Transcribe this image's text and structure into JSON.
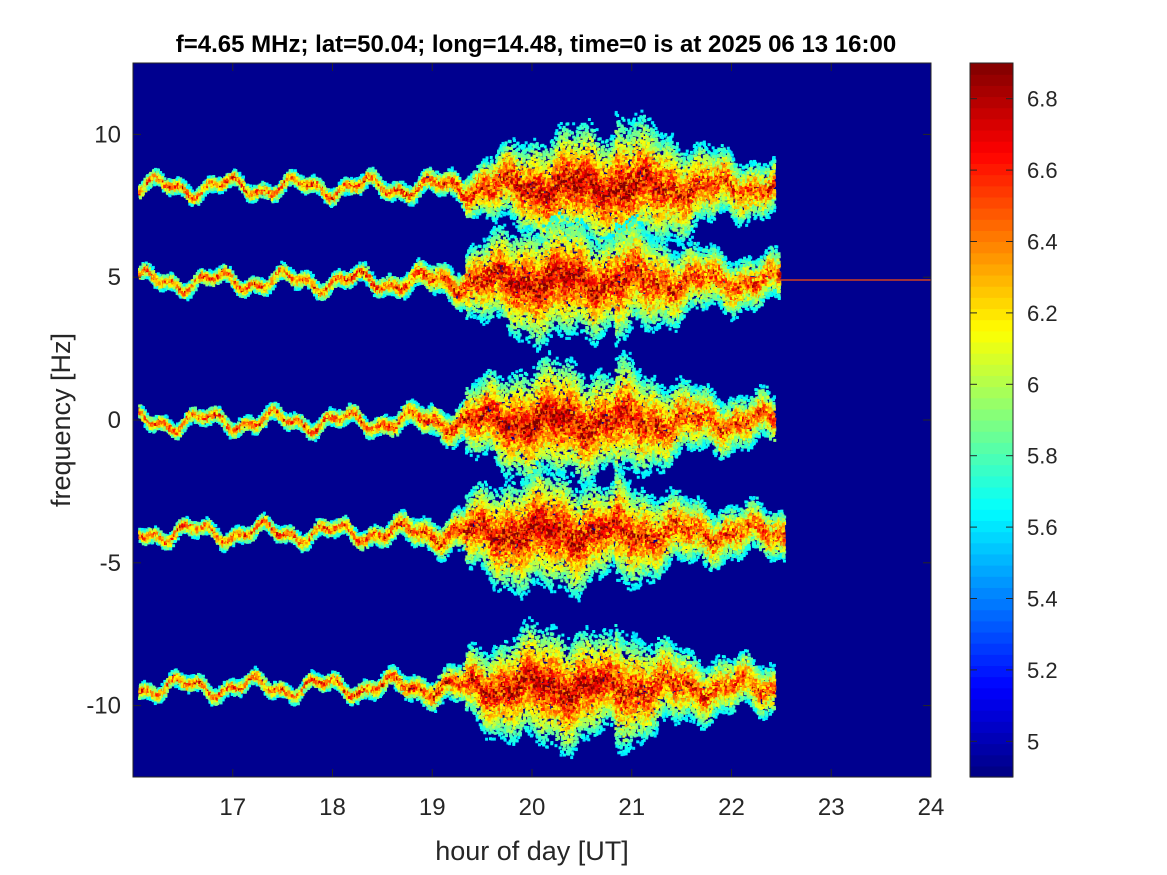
{
  "chart_data": {
    "type": "heatmap",
    "title": "f=4.65 MHz;  lat=50.04; long=14.48, time=0 is at 2025 06 13 16:00",
    "xlabel": "hour of day [UT]",
    "ylabel": "frequency [Hz]",
    "xlim": [
      16,
      24
    ],
    "ylim": [
      -12.5,
      12.5
    ],
    "x_ticks": [
      "17",
      "18",
      "19",
      "20",
      "21",
      "22",
      "23",
      "24"
    ],
    "y_ticks": [
      "10",
      "5",
      "0",
      "-5",
      "-10"
    ],
    "colorbar": {
      "colormap": "jet",
      "range": [
        4.9,
        6.9
      ],
      "ticks": [
        "5",
        "5.2",
        "5.4",
        "5.6",
        "5.8",
        "6",
        "6.2",
        "6.4",
        "6.6",
        "6.8"
      ]
    },
    "background_color": "#00008f",
    "series": [
      {
        "center_hz": 8.2,
        "start_hour": 16.05,
        "end_hour": 22.4,
        "peak_hour": 20.5
      },
      {
        "center_hz": 4.9,
        "start_hour": 16.05,
        "end_hour": 22.45,
        "peak_hour": 20.2
      },
      {
        "center_hz": 0.0,
        "start_hour": 16.05,
        "end_hour": 22.4,
        "peak_hour": 20.2
      },
      {
        "center_hz": -3.9,
        "start_hour": 16.05,
        "end_hour": 22.5,
        "peak_hour": 20.1
      },
      {
        "center_hz": -9.3,
        "start_hour": 16.05,
        "end_hour": 22.4,
        "peak_hour": 20.2
      }
    ],
    "carrier_line": {
      "center_hz": 4.9,
      "start_hour": 22.45,
      "end_hour": 24
    }
  }
}
